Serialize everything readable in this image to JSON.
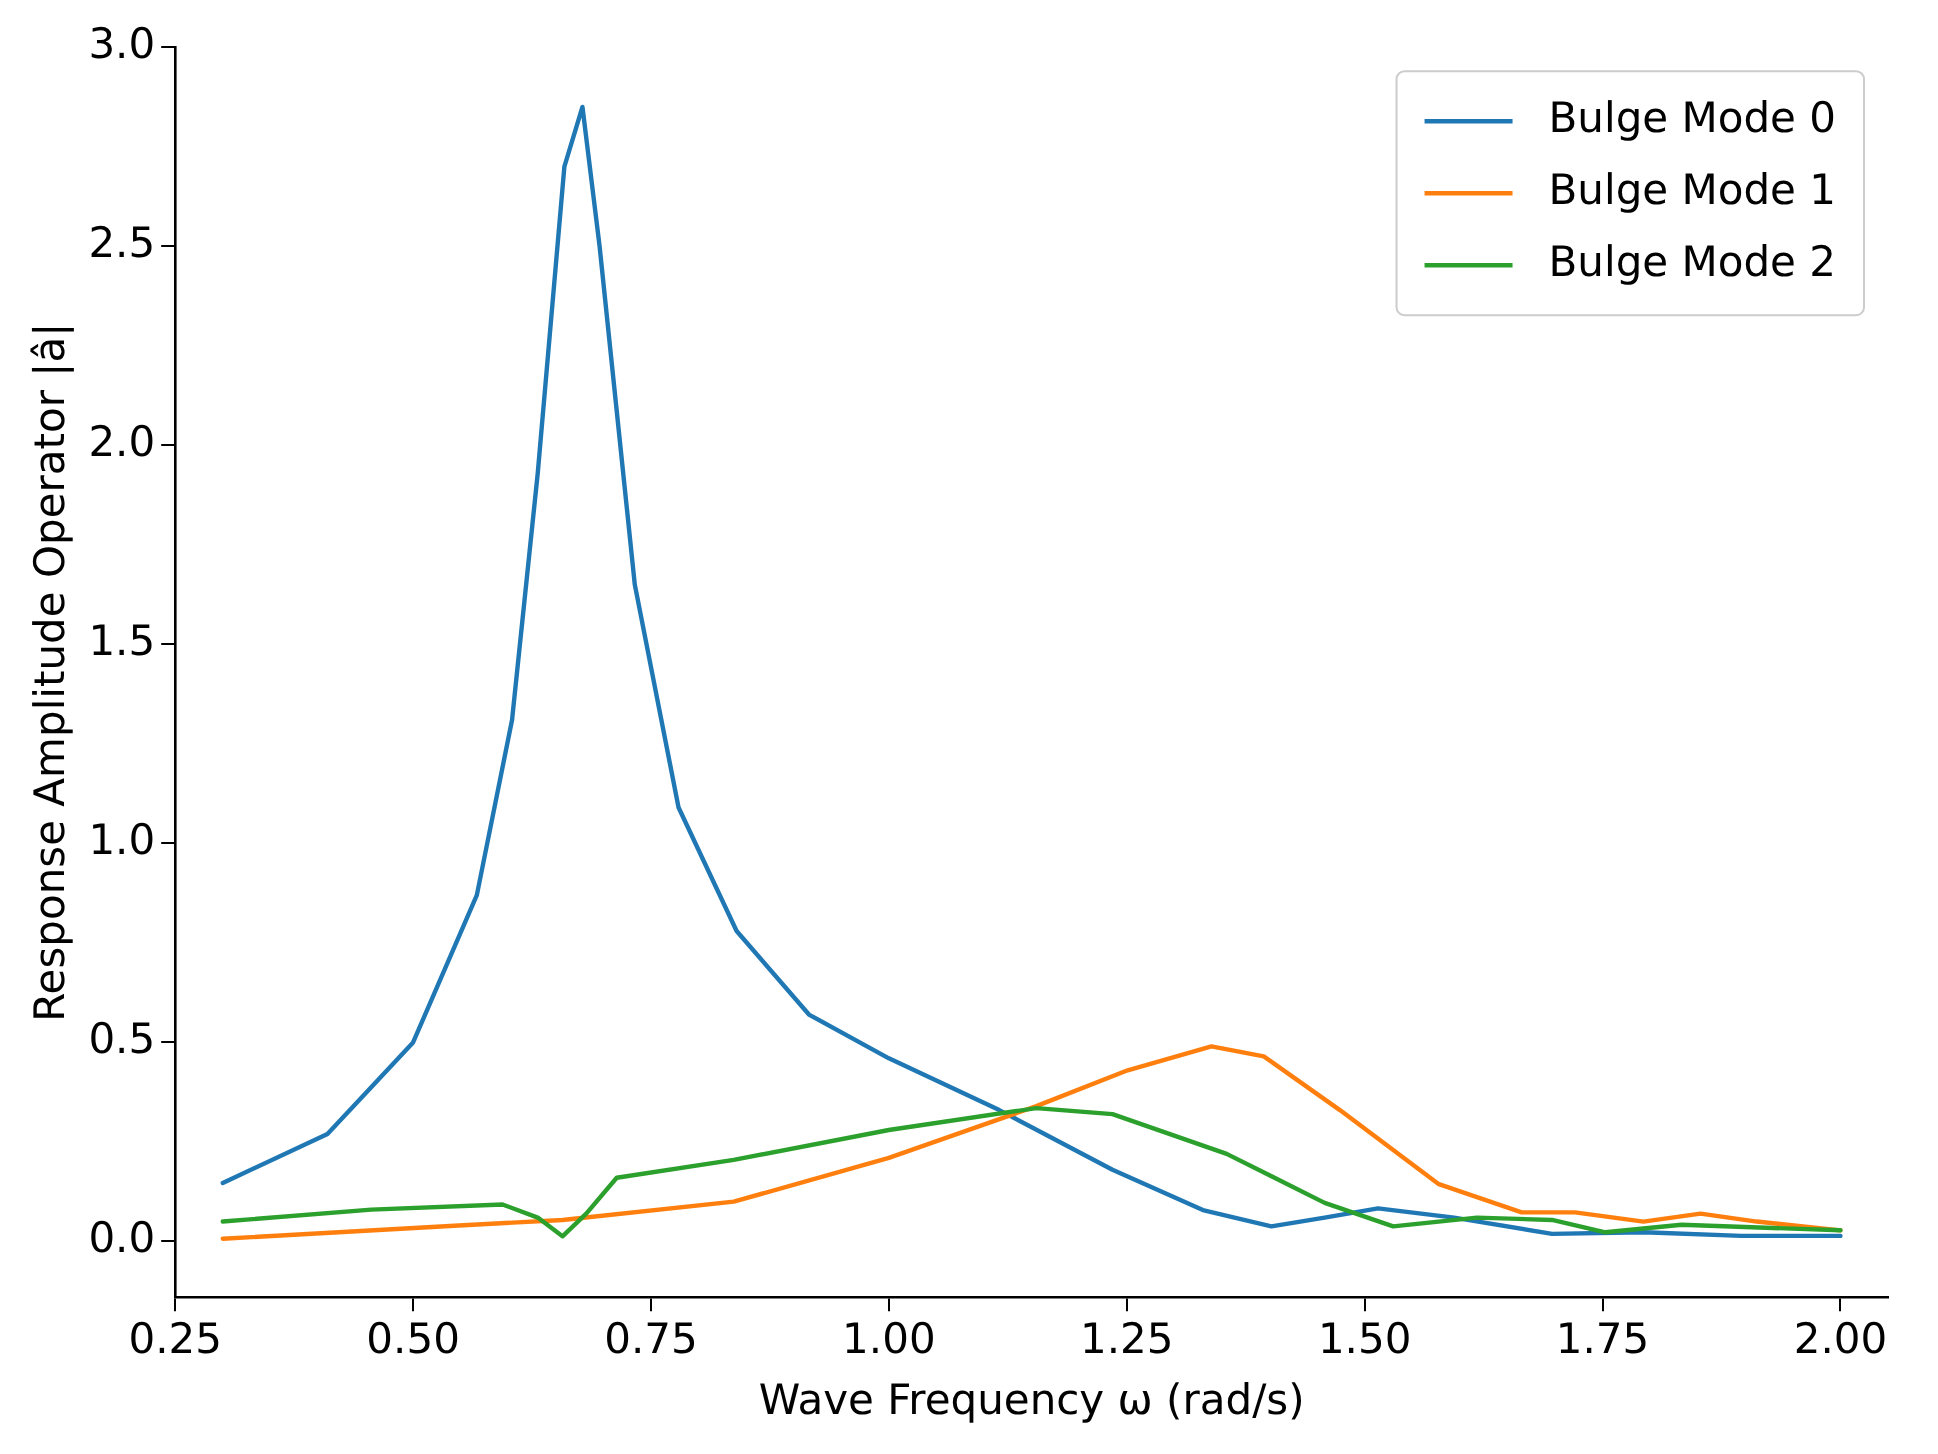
{
  "chart_data": {
    "type": "line",
    "xlabel": "Wave Frequency ω (rad/s)",
    "ylabel": "Response Amplitude Operator |â|",
    "xlim": [
      0.25,
      2.05
    ],
    "ylim": [
      -0.14,
      3.0
    ],
    "xticks": [
      0.25,
      {
        "value": 0.5,
        "label": "0.50"
      },
      0.75,
      {
        "value": 1,
        "label": "1.00"
      },
      1.25,
      {
        "value": 1.5,
        "label": "1.50"
      },
      1.75,
      {
        "value": 2,
        "label": "2.00"
      }
    ],
    "yticks": [
      {
        "value": 0,
        "label": "0.0"
      },
      0.5,
      {
        "value": 1,
        "label": "1.0"
      },
      1.5,
      {
        "value": 2,
        "label": "2.0"
      },
      2.5,
      {
        "value": 3,
        "label": "3.0"
      }
    ],
    "grid": false,
    "legend": "top right",
    "marker": "none",
    "line_style": "solid",
    "series": [
      {
        "name": "Bulge Mode 0",
        "color": "#1f77b4",
        "x": [
          0.3,
          0.41,
          0.5,
          0.567,
          0.604,
          0.631,
          0.659,
          0.678,
          0.696,
          0.733,
          0.779,
          0.84,
          0.916,
          1.0,
          1.116,
          1.235,
          1.33,
          1.402,
          1.458,
          1.514,
          1.594,
          1.697,
          1.793,
          1.896,
          2.0
        ],
        "values": [
          0.147,
          0.27,
          0.5,
          0.87,
          1.31,
          1.93,
          2.7,
          2.85,
          2.5,
          1.65,
          1.09,
          0.78,
          0.57,
          0.46,
          0.33,
          0.18,
          0.079,
          0.038,
          0.06,
          0.083,
          0.06,
          0.019,
          0.023,
          0.014,
          0.014
        ]
      },
      {
        "name": "Bulge Mode 1",
        "color": "#ff7f0e",
        "x": [
          0.3,
          0.548,
          0.657,
          0.837,
          1.0,
          1.155,
          1.251,
          1.339,
          1.394,
          1.474,
          1.578,
          1.665,
          1.721,
          1.793,
          1.853,
          1.912,
          2.0
        ],
        "values": [
          0.007,
          0.04,
          0.054,
          0.1,
          0.21,
          0.34,
          0.43,
          0.49,
          0.465,
          0.33,
          0.144,
          0.073,
          0.073,
          0.05,
          0.07,
          0.05,
          0.028
        ]
      },
      {
        "name": "Bulge Mode 2",
        "color": "#2ca02c",
        "x": [
          0.3,
          0.456,
          0.594,
          0.631,
          0.657,
          0.682,
          0.714,
          0.837,
          1.0,
          1.155,
          1.235,
          1.355,
          1.458,
          1.53,
          1.618,
          1.697,
          1.753,
          1.833,
          2.0
        ],
        "values": [
          0.05,
          0.08,
          0.093,
          0.06,
          0.013,
          0.07,
          0.16,
          0.205,
          0.28,
          0.335,
          0.32,
          0.22,
          0.097,
          0.038,
          0.06,
          0.054,
          0.023,
          0.042,
          0.028
        ]
      }
    ]
  }
}
